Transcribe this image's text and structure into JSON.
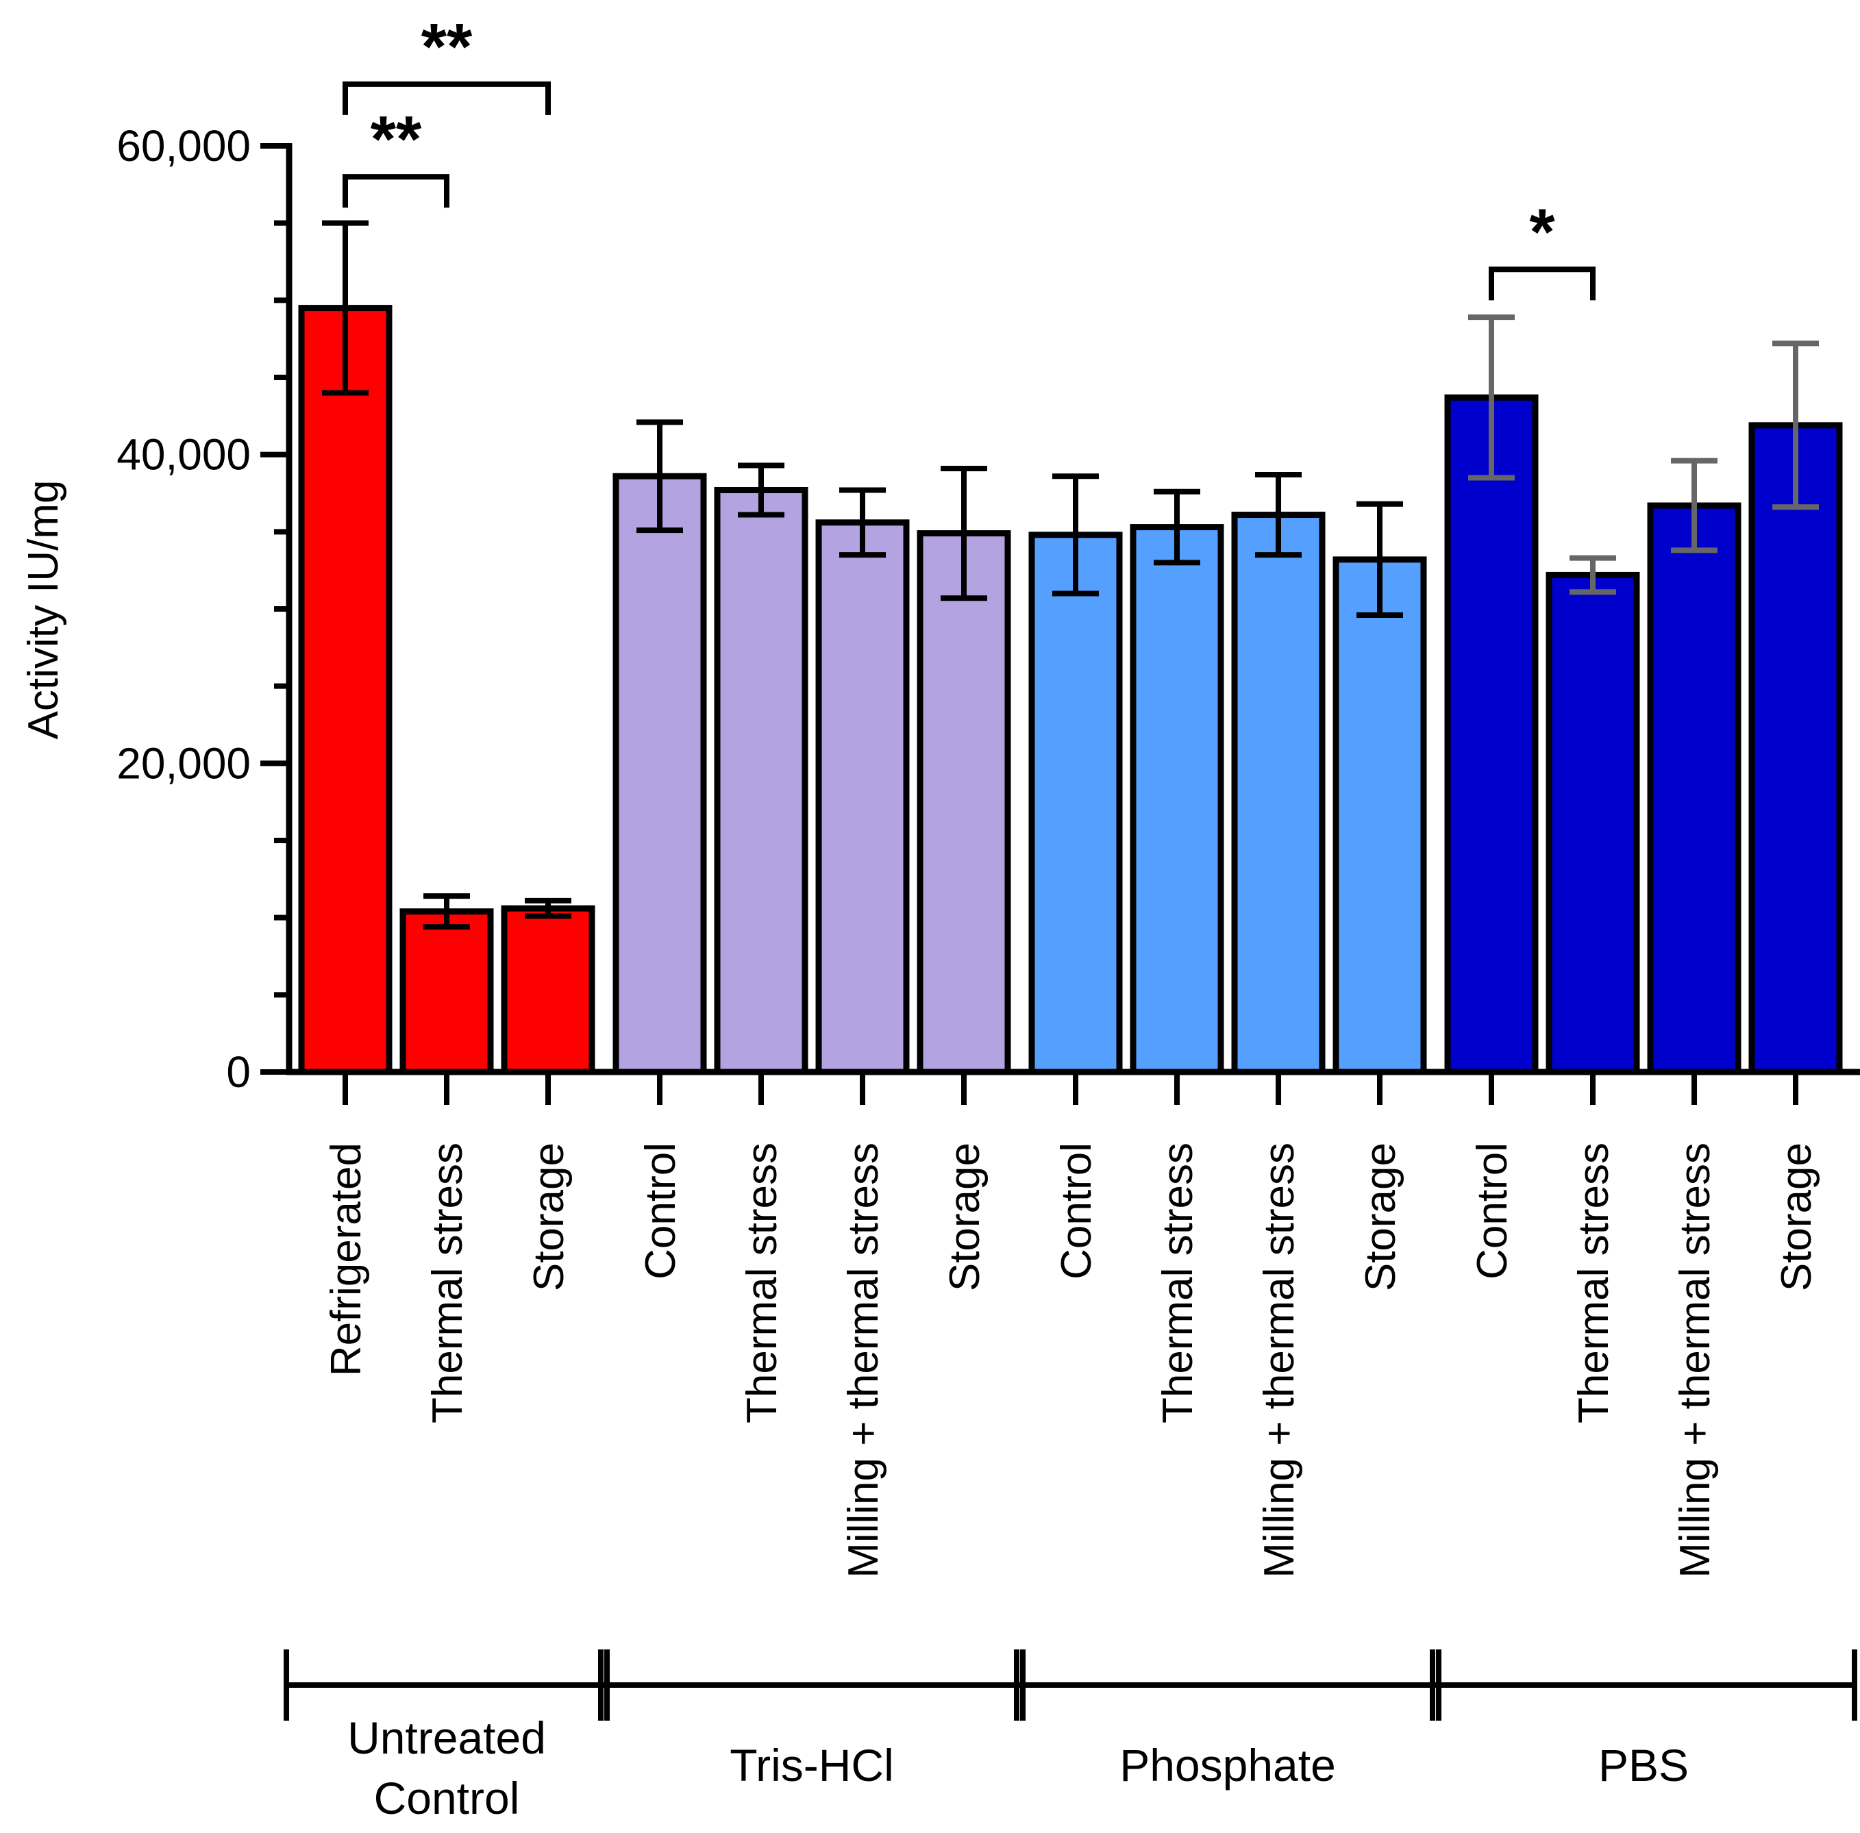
{
  "chart_data": {
    "type": "bar",
    "title": "",
    "xlabel": "",
    "ylabel": "Activity IU/mg",
    "ylim": [
      0,
      60000
    ],
    "yticks": [
      {
        "value": 0,
        "label": "0"
      },
      {
        "value": 20000,
        "label": "20,000"
      },
      {
        "value": 40000,
        "label": "40,000"
      },
      {
        "value": 60000,
        "label": "60,000"
      }
    ],
    "minor_tick_step": 5000,
    "grid": false,
    "groups": [
      {
        "name": "Untreated Control",
        "label_lines": [
          "Untreated",
          "Control"
        ],
        "color": "#ff0000",
        "error_color": "#000000",
        "bars": [
          {
            "category": "Refrigerated",
            "value": 49500,
            "error": 5500
          },
          {
            "category": "Thermal stress",
            "value": 10400,
            "error": 1000
          },
          {
            "category": "Storage",
            "value": 10600,
            "error": 500
          }
        ]
      },
      {
        "name": "Tris-HCl",
        "label_lines": [
          "Tris-HCl"
        ],
        "color": "#b3a3e0",
        "error_color": "#000000",
        "bars": [
          {
            "category": "Control",
            "value": 38600,
            "error": 3500
          },
          {
            "category": "Thermal stress",
            "value": 37700,
            "error": 1600
          },
          {
            "category": "Milling + thermal stress",
            "value": 35600,
            "error": 2100
          },
          {
            "category": "Storage",
            "value": 34900,
            "error": 4200
          }
        ]
      },
      {
        "name": "Phosphate",
        "label_lines": [
          "Phosphate"
        ],
        "color": "#55a0ff",
        "error_color": "#000000",
        "bars": [
          {
            "category": "Control",
            "value": 34800,
            "error": 3800
          },
          {
            "category": "Thermal stress",
            "value": 35300,
            "error": 2300
          },
          {
            "category": "Milling + thermal stress",
            "value": 36100,
            "error": 2600
          },
          {
            "category": "Storage",
            "value": 33200,
            "error": 3600
          }
        ]
      },
      {
        "name": "PBS",
        "label_lines": [
          "PBS"
        ],
        "color": "#0000cc",
        "error_color": "#666666",
        "bars": [
          {
            "category": "Control",
            "value": 43700,
            "error": 5200
          },
          {
            "category": "Thermal stress",
            "value": 32200,
            "error": 1100
          },
          {
            "category": "Milling + thermal stress",
            "value": 36700,
            "error": 2900
          },
          {
            "category": "Storage",
            "value": 41900,
            "error": 5300
          }
        ]
      }
    ],
    "significance": [
      {
        "from": 0,
        "to": 1,
        "label": "**",
        "level_value": 58000,
        "tip_value": 56000
      },
      {
        "from": 0,
        "to": 2,
        "label": "**",
        "level_value": 64000,
        "tip_value": 62000
      },
      {
        "from": 11,
        "to": 12,
        "label": "*",
        "level_value": 52000,
        "tip_value": 50000
      }
    ]
  }
}
